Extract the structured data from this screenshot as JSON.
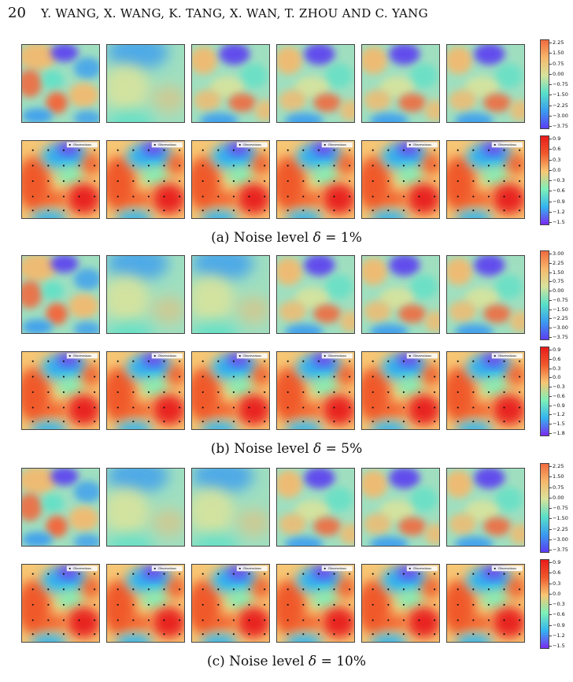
{
  "header": {
    "page_number": "20",
    "authors": "Y. WANG, X. WANG, K. TANG, X. WAN, T. ZHOU AND C. YANG"
  },
  "legend_label": "Observations",
  "colorscales": {
    "field": [
      "#5b3df2",
      "#3a9cf0",
      "#59e0c8",
      "#d8e39c",
      "#f6b86c",
      "#f06a3f"
    ],
    "state": [
      "#7a2bf0",
      "#33b5ef",
      "#7ef0b8",
      "#f7c775",
      "#f05a2c",
      "#e81b1b"
    ]
  },
  "groups": [
    {
      "caption_prefix": "(a) Noise level ",
      "delta": "δ",
      "caption_value": " = 1%",
      "field_ticks": [
        "2.25",
        "1.50",
        "0.75",
        "0.00",
        "−0.75",
        "−1.50",
        "−2.25",
        "−3.00",
        "−3.75"
      ],
      "state_ticks": [
        "0.9",
        "0.6",
        "0.3",
        "0.0",
        "−0.3",
        "−0.6",
        "−0.9",
        "−1.2",
        "−1.5"
      ]
    },
    {
      "caption_prefix": "(b) Noise level ",
      "delta": "δ",
      "caption_value": " = 5%",
      "field_ticks": [
        "3.00",
        "2.25",
        "1.50",
        "0.75",
        "0.00",
        "−0.75",
        "−1.50",
        "−2.25",
        "−3.00",
        "−3.75"
      ],
      "state_ticks": [
        "0.9",
        "0.6",
        "0.3",
        "0.0",
        "−0.3",
        "−0.6",
        "−0.9",
        "−1.2",
        "−1.5",
        "−1.8"
      ]
    },
    {
      "caption_prefix": "(c) Noise level ",
      "delta": "δ",
      "caption_value": " = 10%",
      "field_ticks": [
        "2.25",
        "1.50",
        "0.75",
        "0.00",
        "−0.75",
        "−1.50",
        "−2.25",
        "−3.00",
        "−3.75"
      ],
      "state_ticks": [
        "0.9",
        "0.6",
        "0.3",
        "0.0",
        "−0.3",
        "−0.6",
        "−0.9",
        "−1.2",
        "−1.5"
      ]
    }
  ]
}
